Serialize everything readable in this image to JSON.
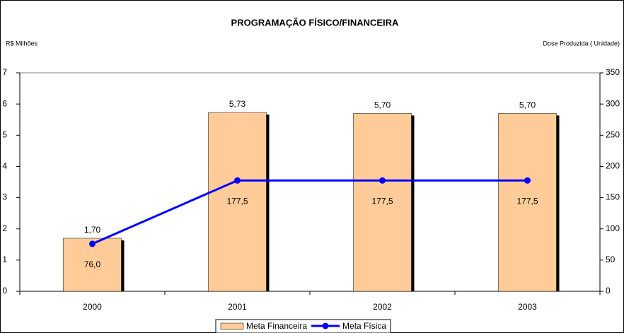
{
  "chart_data": {
    "type": "bar",
    "title": "PROGRAMAÇÃO FÍSICO/FINANCEIRA",
    "y_label": "R$ Milhões",
    "y2_label": "Dose Produzida ( Unidade)",
    "categories": [
      "2000",
      "2001",
      "2002",
      "2003"
    ],
    "series": [
      {
        "name": "Meta Financeira",
        "type": "bar",
        "color": "#FFCC99",
        "values": [
          1.7,
          5.73,
          5.7,
          5.7
        ],
        "value_labels": [
          "1,70",
          "5,73",
          "5,70",
          "5,70"
        ]
      },
      {
        "name": "Meta Física",
        "type": "line",
        "axis": "y2",
        "color": "#0000FF",
        "values": [
          76.0,
          177.5,
          177.5,
          177.5
        ],
        "value_labels": [
          "76,0",
          "177,5",
          "177,5",
          "177,5"
        ]
      }
    ],
    "ylim": [
      0,
      7
    ],
    "yticks": [
      0,
      1,
      2,
      3,
      4,
      5,
      6,
      7
    ],
    "y2lim": [
      0,
      350
    ],
    "y2ticks": [
      0,
      50,
      100,
      150,
      200,
      250,
      300,
      350
    ],
    "grid": false
  }
}
